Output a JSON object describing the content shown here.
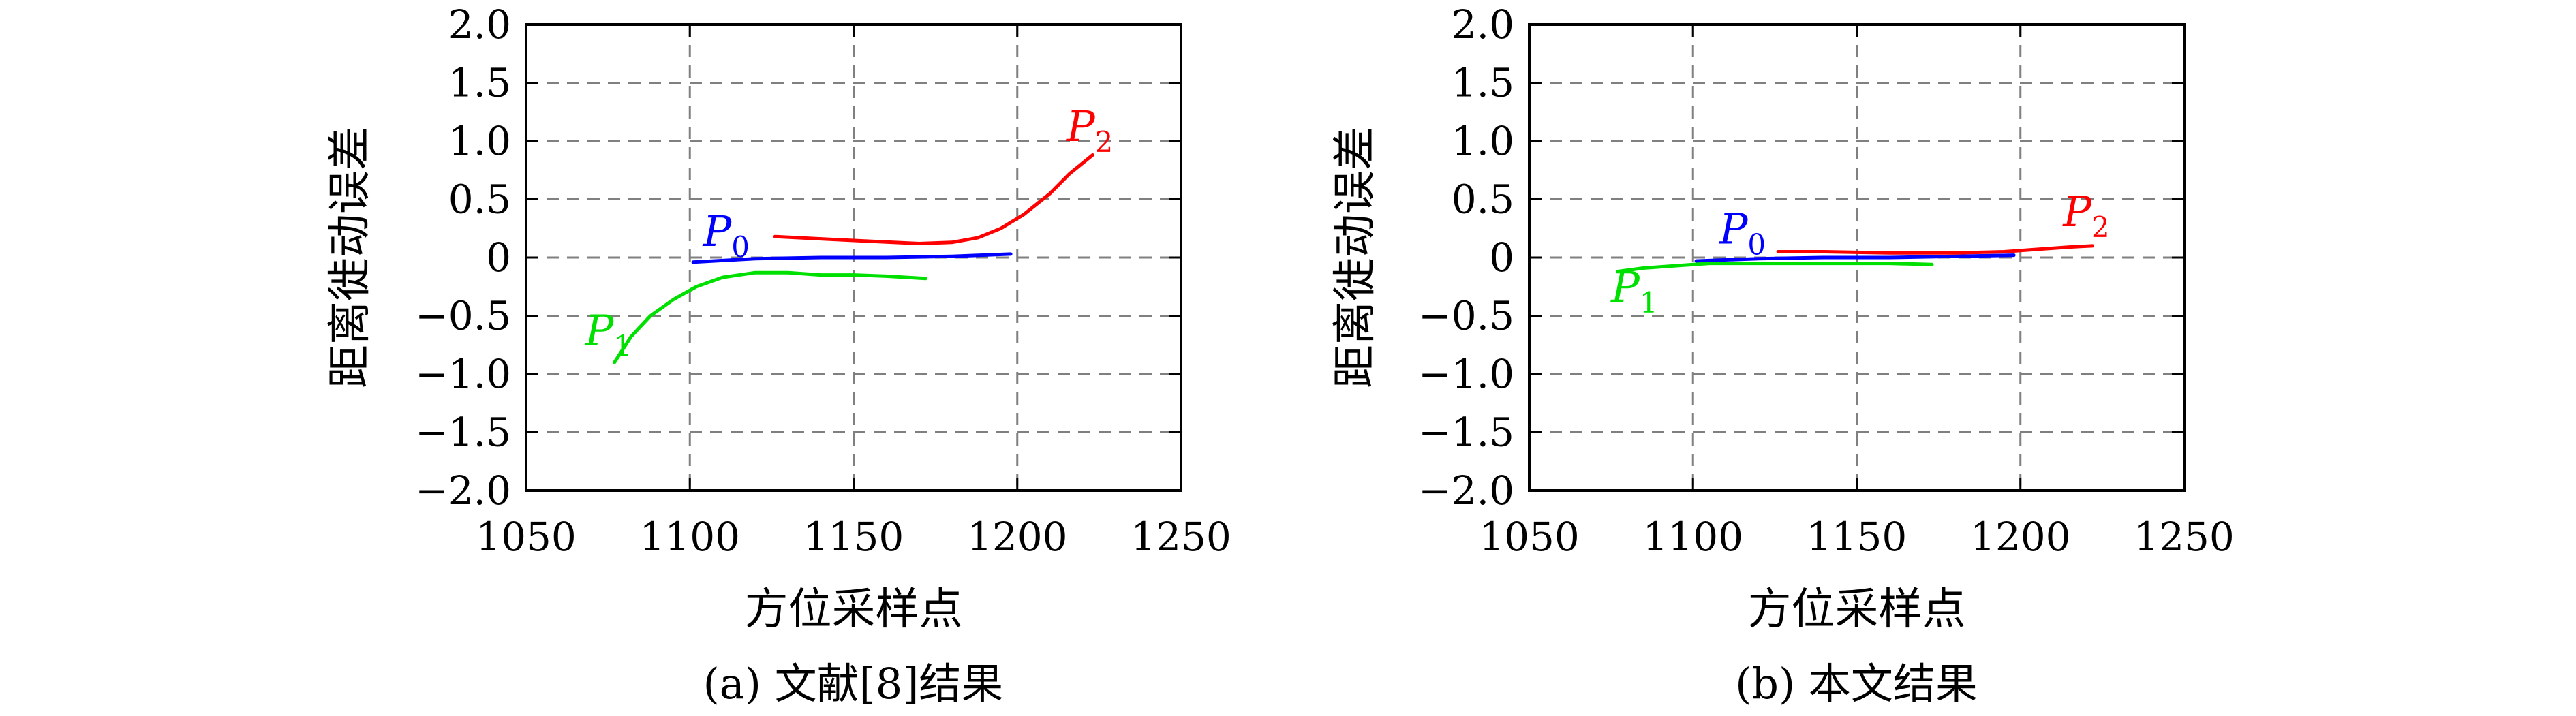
{
  "chart_data": [
    {
      "type": "line",
      "caption": "(a) 文献[8]结果",
      "xlabel": "方位采样点",
      "ylabel": "距离徙动误差",
      "xlim": [
        1050,
        1250
      ],
      "ylim": [
        -2.0,
        2.0
      ],
      "xticks": [
        1050,
        1100,
        1150,
        1200,
        1250
      ],
      "xtick_labels": [
        "1050",
        "1100",
        "1150",
        "1200",
        "1250"
      ],
      "yticks": [
        -2.0,
        -1.5,
        -1.0,
        -0.5,
        0,
        0.5,
        1.0,
        1.5,
        2.0
      ],
      "ytick_labels": [
        "−2.0",
        "−1.5",
        "−1.0",
        "−0.5",
        "0",
        "0.5",
        "1.0",
        "1.5",
        "2.0"
      ],
      "grid": true,
      "series": [
        {
          "name": "P0",
          "label_main": "P",
          "label_sub": "0",
          "color": "#0000ff",
          "label_at": [
            1104,
            0.1
          ],
          "x": [
            1101,
            1120,
            1140,
            1160,
            1180,
            1198
          ],
          "y": [
            -0.04,
            -0.01,
            0.0,
            0.0,
            0.01,
            0.03
          ]
        },
        {
          "name": "P1",
          "label_main": "P",
          "label_sub": "1",
          "color": "#00e000",
          "label_at": [
            1068,
            -0.75
          ],
          "x": [
            1077,
            1082,
            1088,
            1095,
            1102,
            1110,
            1120,
            1130,
            1140,
            1150,
            1160,
            1172
          ],
          "y": [
            -0.9,
            -0.68,
            -0.5,
            -0.36,
            -0.25,
            -0.17,
            -0.13,
            -0.13,
            -0.15,
            -0.15,
            -0.16,
            -0.18
          ]
        },
        {
          "name": "P2",
          "label_main": "P",
          "label_sub": "2",
          "color": "#ff0000",
          "label_at": [
            1215,
            1.0
          ],
          "x": [
            1126,
            1140,
            1155,
            1170,
            1180,
            1188,
            1195,
            1202,
            1210,
            1216,
            1223
          ],
          "y": [
            0.18,
            0.16,
            0.14,
            0.12,
            0.13,
            0.17,
            0.25,
            0.37,
            0.55,
            0.72,
            0.88
          ]
        }
      ]
    },
    {
      "type": "line",
      "caption": "(b) 本文结果",
      "xlabel": "方位采样点",
      "ylabel": "距离徙动误差",
      "xlim": [
        1050,
        1250
      ],
      "ylim": [
        -2.0,
        2.0
      ],
      "xticks": [
        1050,
        1100,
        1150,
        1200,
        1250
      ],
      "xtick_labels": [
        "1050",
        "1100",
        "1150",
        "1200",
        "1250"
      ],
      "yticks": [
        -2.0,
        -1.5,
        -1.0,
        -0.5,
        0,
        0.5,
        1.0,
        1.5,
        2.0
      ],
      "ytick_labels": [
        "−2.0",
        "−1.5",
        "−1.0",
        "−0.5",
        "0",
        "0.5",
        "1.0",
        "1.5",
        "2.0"
      ],
      "grid": true,
      "series": [
        {
          "name": "P0",
          "label_main": "P",
          "label_sub": "0",
          "color": "#0000ff",
          "label_at": [
            1108,
            0.12
          ],
          "x": [
            1101,
            1120,
            1140,
            1160,
            1180,
            1198
          ],
          "y": [
            -0.03,
            -0.01,
            0.0,
            0.0,
            0.01,
            0.02
          ]
        },
        {
          "name": "P1",
          "label_main": "P",
          "label_sub": "1",
          "color": "#00e000",
          "label_at": [
            1075,
            -0.38
          ],
          "x": [
            1077,
            1085,
            1095,
            1105,
            1120,
            1140,
            1160,
            1173
          ],
          "y": [
            -0.12,
            -0.09,
            -0.07,
            -0.05,
            -0.05,
            -0.05,
            -0.05,
            -0.06
          ]
        },
        {
          "name": "P2",
          "label_main": "P",
          "label_sub": "2",
          "color": "#ff0000",
          "label_at": [
            1213,
            0.27
          ],
          "x": [
            1126,
            1140,
            1160,
            1180,
            1195,
            1205,
            1215,
            1222
          ],
          "y": [
            0.05,
            0.05,
            0.04,
            0.04,
            0.05,
            0.07,
            0.09,
            0.1
          ]
        }
      ]
    }
  ]
}
